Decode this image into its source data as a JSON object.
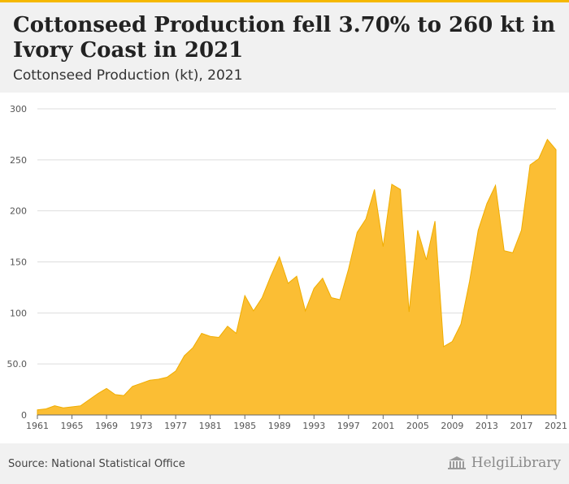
{
  "header": {
    "title": "Cottonseed Production fell 3.70% to 260 kt in Ivory Coast in 2021",
    "subtitle": "Cottonseed Production (kt), 2021"
  },
  "footer": {
    "source": "Source: National Statistical Office",
    "logo_text": "HelgiLibrary"
  },
  "colors": {
    "accent": "#f5b800",
    "area": "#fbbe34",
    "header_bg": "#f1f1f1"
  },
  "chart_data": {
    "type": "area",
    "title": "Cottonseed Production fell 3.70% to 260 kt in Ivory Coast in 2021",
    "subtitle": "Cottonseed Production (kt), 2021",
    "xlabel": "",
    "ylabel": "",
    "xlim": [
      1961,
      2021
    ],
    "ylim": [
      0,
      300
    ],
    "yticks": [
      0,
      50,
      100,
      150,
      200,
      250,
      300
    ],
    "ytick_labels": [
      "0",
      "50.0",
      "100",
      "150",
      "200",
      "250",
      "300"
    ],
    "xticks": [
      1961,
      1965,
      1969,
      1973,
      1977,
      1981,
      1985,
      1989,
      1993,
      1997,
      2001,
      2005,
      2009,
      2013,
      2017,
      2021
    ],
    "grid": true,
    "x": [
      1961,
      1962,
      1963,
      1964,
      1965,
      1966,
      1967,
      1968,
      1969,
      1970,
      1971,
      1972,
      1973,
      1974,
      1975,
      1976,
      1977,
      1978,
      1979,
      1980,
      1981,
      1982,
      1983,
      1984,
      1985,
      1986,
      1987,
      1988,
      1989,
      1990,
      1991,
      1992,
      1993,
      1994,
      1995,
      1996,
      1997,
      1998,
      1999,
      2000,
      2001,
      2002,
      2003,
      2004,
      2005,
      2006,
      2007,
      2008,
      2009,
      2010,
      2011,
      2012,
      2013,
      2014,
      2015,
      2016,
      2017,
      2018,
      2019,
      2020,
      2021
    ],
    "values": [
      5,
      6,
      9,
      7,
      8,
      9,
      15,
      21,
      26,
      20,
      19,
      28,
      31,
      34,
      35,
      37,
      43,
      58,
      66,
      80,
      77,
      76,
      87,
      80,
      117,
      102,
      115,
      136,
      155,
      129,
      136,
      102,
      124,
      134,
      115,
      113,
      143,
      179,
      192,
      221,
      165,
      226,
      221,
      101,
      181,
      152,
      190,
      67,
      72,
      89,
      131,
      181,
      207,
      225,
      161,
      159,
      181,
      245,
      251,
      270,
      260
    ]
  }
}
